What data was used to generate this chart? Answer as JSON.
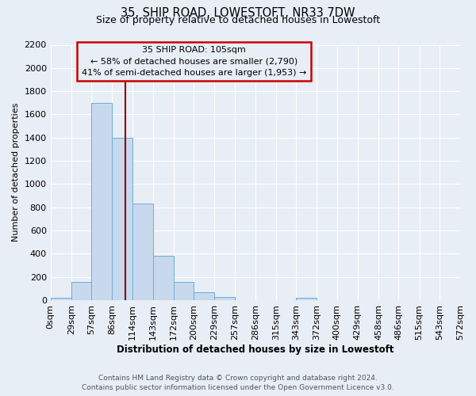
{
  "title": "35, SHIP ROAD, LOWESTOFT, NR33 7DW",
  "subtitle": "Size of property relative to detached houses in Lowestoft",
  "xlabel": "Distribution of detached houses by size in Lowestoft",
  "ylabel": "Number of detached properties",
  "bin_edges": [
    0,
    29,
    57,
    86,
    114,
    143,
    172,
    200,
    229,
    257,
    286,
    315,
    343,
    372,
    400,
    429,
    458,
    486,
    515,
    543,
    572
  ],
  "bar_heights": [
    20,
    155,
    1700,
    1400,
    830,
    380,
    160,
    65,
    25,
    0,
    0,
    0,
    20,
    0,
    0,
    0,
    0,
    0,
    0,
    0
  ],
  "bar_color": "#c8d9ee",
  "bar_edge_color": "#6baed6",
  "property_size": 105,
  "vline_color": "#8b0000",
  "annotation_box_edge_color": "#cc0000",
  "annotation_title": "35 SHIP ROAD: 105sqm",
  "annotation_line1": "← 58% of detached houses are smaller (2,790)",
  "annotation_line2": "41% of semi-detached houses are larger (1,953) →",
  "ylim_max": 2200,
  "yticks": [
    0,
    200,
    400,
    600,
    800,
    1000,
    1200,
    1400,
    1600,
    1800,
    2000,
    2200
  ],
  "bg_color": "#e8eef5",
  "grid_color": "#ffffff",
  "footer_line1": "Contains HM Land Registry data © Crown copyright and database right 2024.",
  "footer_line2": "Contains public sector information licensed under the Open Government Licence v3.0."
}
